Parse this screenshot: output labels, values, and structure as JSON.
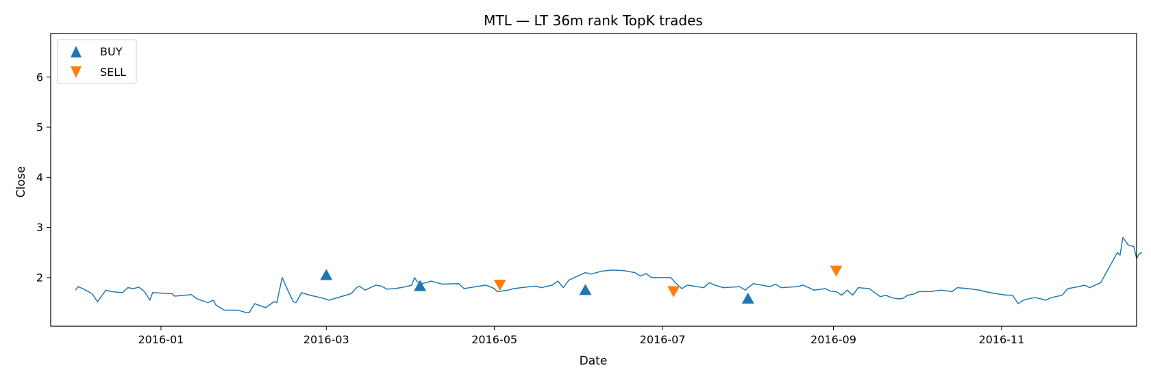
{
  "chart_data": {
    "type": "line",
    "title": "MTL — LT 36m rank TopK trades",
    "xlabel": "Date",
    "ylabel": "Close",
    "xlim": [
      "2015-11-22",
      "2016-12-20"
    ],
    "ylim": [
      1.03,
      6.87
    ],
    "x_ticks": [
      "2016-01-01",
      "2016-03-01",
      "2016-05-01",
      "2016-07-01",
      "2016-09-01",
      "2016-11-01"
    ],
    "x_tick_labels": [
      "2016-01",
      "2016-03",
      "2016-05",
      "2016-07",
      "2016-09",
      "2016-11"
    ],
    "y_ticks": [
      2,
      3,
      4,
      5,
      6
    ],
    "y_tick_labels": [
      "2",
      "3",
      "4",
      "5",
      "6"
    ],
    "grid": false,
    "legend_position": "upper-left",
    "colors": {
      "line": "#1f77b4",
      "buy": "#1f77b4",
      "sell": "#ff7f0e"
    },
    "series": [
      {
        "points": [
          [
            "2015-12-01",
            1.75
          ],
          [
            "2015-12-02",
            1.82
          ],
          [
            "2015-12-04",
            1.77
          ],
          [
            "2015-12-07",
            1.68
          ],
          [
            "2015-12-09",
            1.52
          ],
          [
            "2015-12-12",
            1.75
          ],
          [
            "2015-12-14",
            1.72
          ],
          [
            "2015-12-18",
            1.7
          ],
          [
            "2015-12-20",
            1.8
          ],
          [
            "2015-12-22",
            1.78
          ],
          [
            "2015-12-24",
            1.81
          ],
          [
            "2015-12-26",
            1.72
          ],
          [
            "2015-12-28",
            1.55
          ],
          [
            "2015-12-29",
            1.7
          ],
          [
            "2016-01-05",
            1.68
          ],
          [
            "2016-01-06",
            1.63
          ],
          [
            "2016-01-12",
            1.66
          ],
          [
            "2016-01-14",
            1.58
          ],
          [
            "2016-01-18",
            1.5
          ],
          [
            "2016-01-20",
            1.55
          ],
          [
            "2016-01-21",
            1.45
          ],
          [
            "2016-01-24",
            1.35
          ],
          [
            "2016-01-29",
            1.35
          ],
          [
            "2016-02-01",
            1.3
          ],
          [
            "2016-02-02",
            1.3
          ],
          [
            "2016-02-04",
            1.48
          ],
          [
            "2016-02-08",
            1.4
          ],
          [
            "2016-02-11",
            1.52
          ],
          [
            "2016-02-12",
            1.5
          ],
          [
            "2016-02-14",
            2.0
          ],
          [
            "2016-02-16",
            1.75
          ],
          [
            "2016-02-18",
            1.52
          ],
          [
            "2016-02-19",
            1.5
          ],
          [
            "2016-02-21",
            1.7
          ],
          [
            "2016-02-24",
            1.65
          ],
          [
            "2016-02-28",
            1.6
          ],
          [
            "2016-03-02",
            1.55
          ],
          [
            "2016-03-10",
            1.68
          ],
          [
            "2016-03-12",
            1.8
          ],
          [
            "2016-03-13",
            1.83
          ],
          [
            "2016-03-15",
            1.75
          ],
          [
            "2016-03-19",
            1.85
          ],
          [
            "2016-03-21",
            1.83
          ],
          [
            "2016-03-23",
            1.77
          ],
          [
            "2016-03-26",
            1.78
          ],
          [
            "2016-03-30",
            1.82
          ],
          [
            "2016-04-01",
            1.85
          ],
          [
            "2016-04-02",
            2.0
          ],
          [
            "2016-04-03",
            1.92
          ],
          [
            "2016-04-05",
            1.88
          ],
          [
            "2016-04-08",
            1.93
          ],
          [
            "2016-04-12",
            1.87
          ],
          [
            "2016-04-18",
            1.88
          ],
          [
            "2016-04-20",
            1.78
          ],
          [
            "2016-04-22",
            1.8
          ],
          [
            "2016-04-28",
            1.85
          ],
          [
            "2016-05-01",
            1.78
          ],
          [
            "2016-05-02",
            1.72
          ],
          [
            "2016-05-06",
            1.75
          ],
          [
            "2016-05-08",
            1.78
          ],
          [
            "2016-05-14",
            1.82
          ],
          [
            "2016-05-16",
            1.83
          ],
          [
            "2016-05-18",
            1.8
          ],
          [
            "2016-05-22",
            1.85
          ],
          [
            "2016-05-24",
            1.93
          ],
          [
            "2016-05-26",
            1.8
          ],
          [
            "2016-05-28",
            1.95
          ],
          [
            "2016-06-01",
            2.05
          ],
          [
            "2016-06-03",
            2.1
          ],
          [
            "2016-06-05",
            2.07
          ],
          [
            "2016-06-09",
            2.13
          ],
          [
            "2016-06-13",
            2.15
          ],
          [
            "2016-06-17",
            2.14
          ],
          [
            "2016-06-21",
            2.1
          ],
          [
            "2016-06-23",
            2.03
          ],
          [
            "2016-06-25",
            2.08
          ],
          [
            "2016-06-27",
            2.0
          ],
          [
            "2016-07-04",
            2.0
          ],
          [
            "2016-07-06",
            1.88
          ],
          [
            "2016-07-08",
            1.78
          ],
          [
            "2016-07-10",
            1.85
          ],
          [
            "2016-07-16",
            1.8
          ],
          [
            "2016-07-18",
            1.9
          ],
          [
            "2016-07-20",
            1.85
          ],
          [
            "2016-07-23",
            1.8
          ],
          [
            "2016-07-29",
            1.82
          ],
          [
            "2016-07-31",
            1.75
          ],
          [
            "2016-08-01",
            1.8
          ],
          [
            "2016-08-03",
            1.88
          ],
          [
            "2016-08-09",
            1.82
          ],
          [
            "2016-08-11",
            1.87
          ],
          [
            "2016-08-13",
            1.8
          ],
          [
            "2016-08-19",
            1.82
          ],
          [
            "2016-08-21",
            1.85
          ],
          [
            "2016-08-23",
            1.8
          ],
          [
            "2016-08-25",
            1.75
          ],
          [
            "2016-08-29",
            1.78
          ],
          [
            "2016-08-31",
            1.73
          ],
          [
            "2016-09-02",
            1.72
          ],
          [
            "2016-09-04",
            1.65
          ],
          [
            "2016-09-06",
            1.75
          ],
          [
            "2016-09-08",
            1.65
          ],
          [
            "2016-09-10",
            1.8
          ],
          [
            "2016-09-14",
            1.78
          ],
          [
            "2016-09-16",
            1.7
          ],
          [
            "2016-09-18",
            1.62
          ],
          [
            "2016-09-20",
            1.65
          ],
          [
            "2016-09-22",
            1.6
          ],
          [
            "2016-09-24",
            1.58
          ],
          [
            "2016-09-26",
            1.58
          ],
          [
            "2016-09-28",
            1.65
          ],
          [
            "2016-09-30",
            1.67
          ],
          [
            "2016-10-02",
            1.72
          ],
          [
            "2016-10-06",
            1.72
          ],
          [
            "2016-10-10",
            1.75
          ],
          [
            "2016-10-14",
            1.72
          ],
          [
            "2016-10-16",
            1.8
          ],
          [
            "2016-10-20",
            1.78
          ],
          [
            "2016-10-24",
            1.75
          ],
          [
            "2016-10-26",
            1.72
          ],
          [
            "2016-10-28",
            1.7
          ],
          [
            "2016-10-30",
            1.68
          ],
          [
            "2016-11-03",
            1.65
          ],
          [
            "2016-11-05",
            1.65
          ],
          [
            "2016-11-07",
            1.48
          ],
          [
            "2016-11-09",
            1.55
          ],
          [
            "2016-11-11",
            1.58
          ],
          [
            "2016-11-13",
            1.6
          ],
          [
            "2016-11-15",
            1.58
          ],
          [
            "2016-11-17",
            1.55
          ],
          [
            "2016-11-19",
            1.6
          ],
          [
            "2016-11-23",
            1.65
          ],
          [
            "2016-11-25",
            1.78
          ],
          [
            "2016-11-27",
            1.8
          ],
          [
            "2016-11-29",
            1.82
          ],
          [
            "2016-12-01",
            1.85
          ],
          [
            "2016-12-03",
            1.8
          ],
          [
            "2016-12-07",
            1.9
          ],
          [
            "2016-12-09",
            2.1
          ],
          [
            "2016-12-11",
            2.3
          ],
          [
            "2016-12-13",
            2.5
          ],
          [
            "2016-12-14",
            2.45
          ],
          [
            "2016-12-15",
            2.8
          ],
          [
            "2016-12-17",
            2.65
          ],
          [
            "2016-12-19",
            2.62
          ],
          [
            "2016-12-20",
            2.38
          ],
          [
            "2016-12-21",
            2.48
          ],
          [
            "2016-12-22",
            2.5
          ]
        ]
      }
    ],
    "buy_points": [
      [
        "2016-03-01",
        2.05
      ],
      [
        "2016-04-04",
        1.83
      ],
      [
        "2016-06-03",
        1.75
      ],
      [
        "2016-08-01",
        1.58
      ]
    ],
    "sell_points": [
      [
        "2016-05-03",
        1.86
      ],
      [
        "2016-07-05",
        1.73
      ],
      [
        "2016-09-02",
        2.14
      ]
    ],
    "legend": [
      {
        "label": "BUY",
        "marker": "triangle-up"
      },
      {
        "label": "SELL",
        "marker": "triangle-down"
      }
    ]
  }
}
